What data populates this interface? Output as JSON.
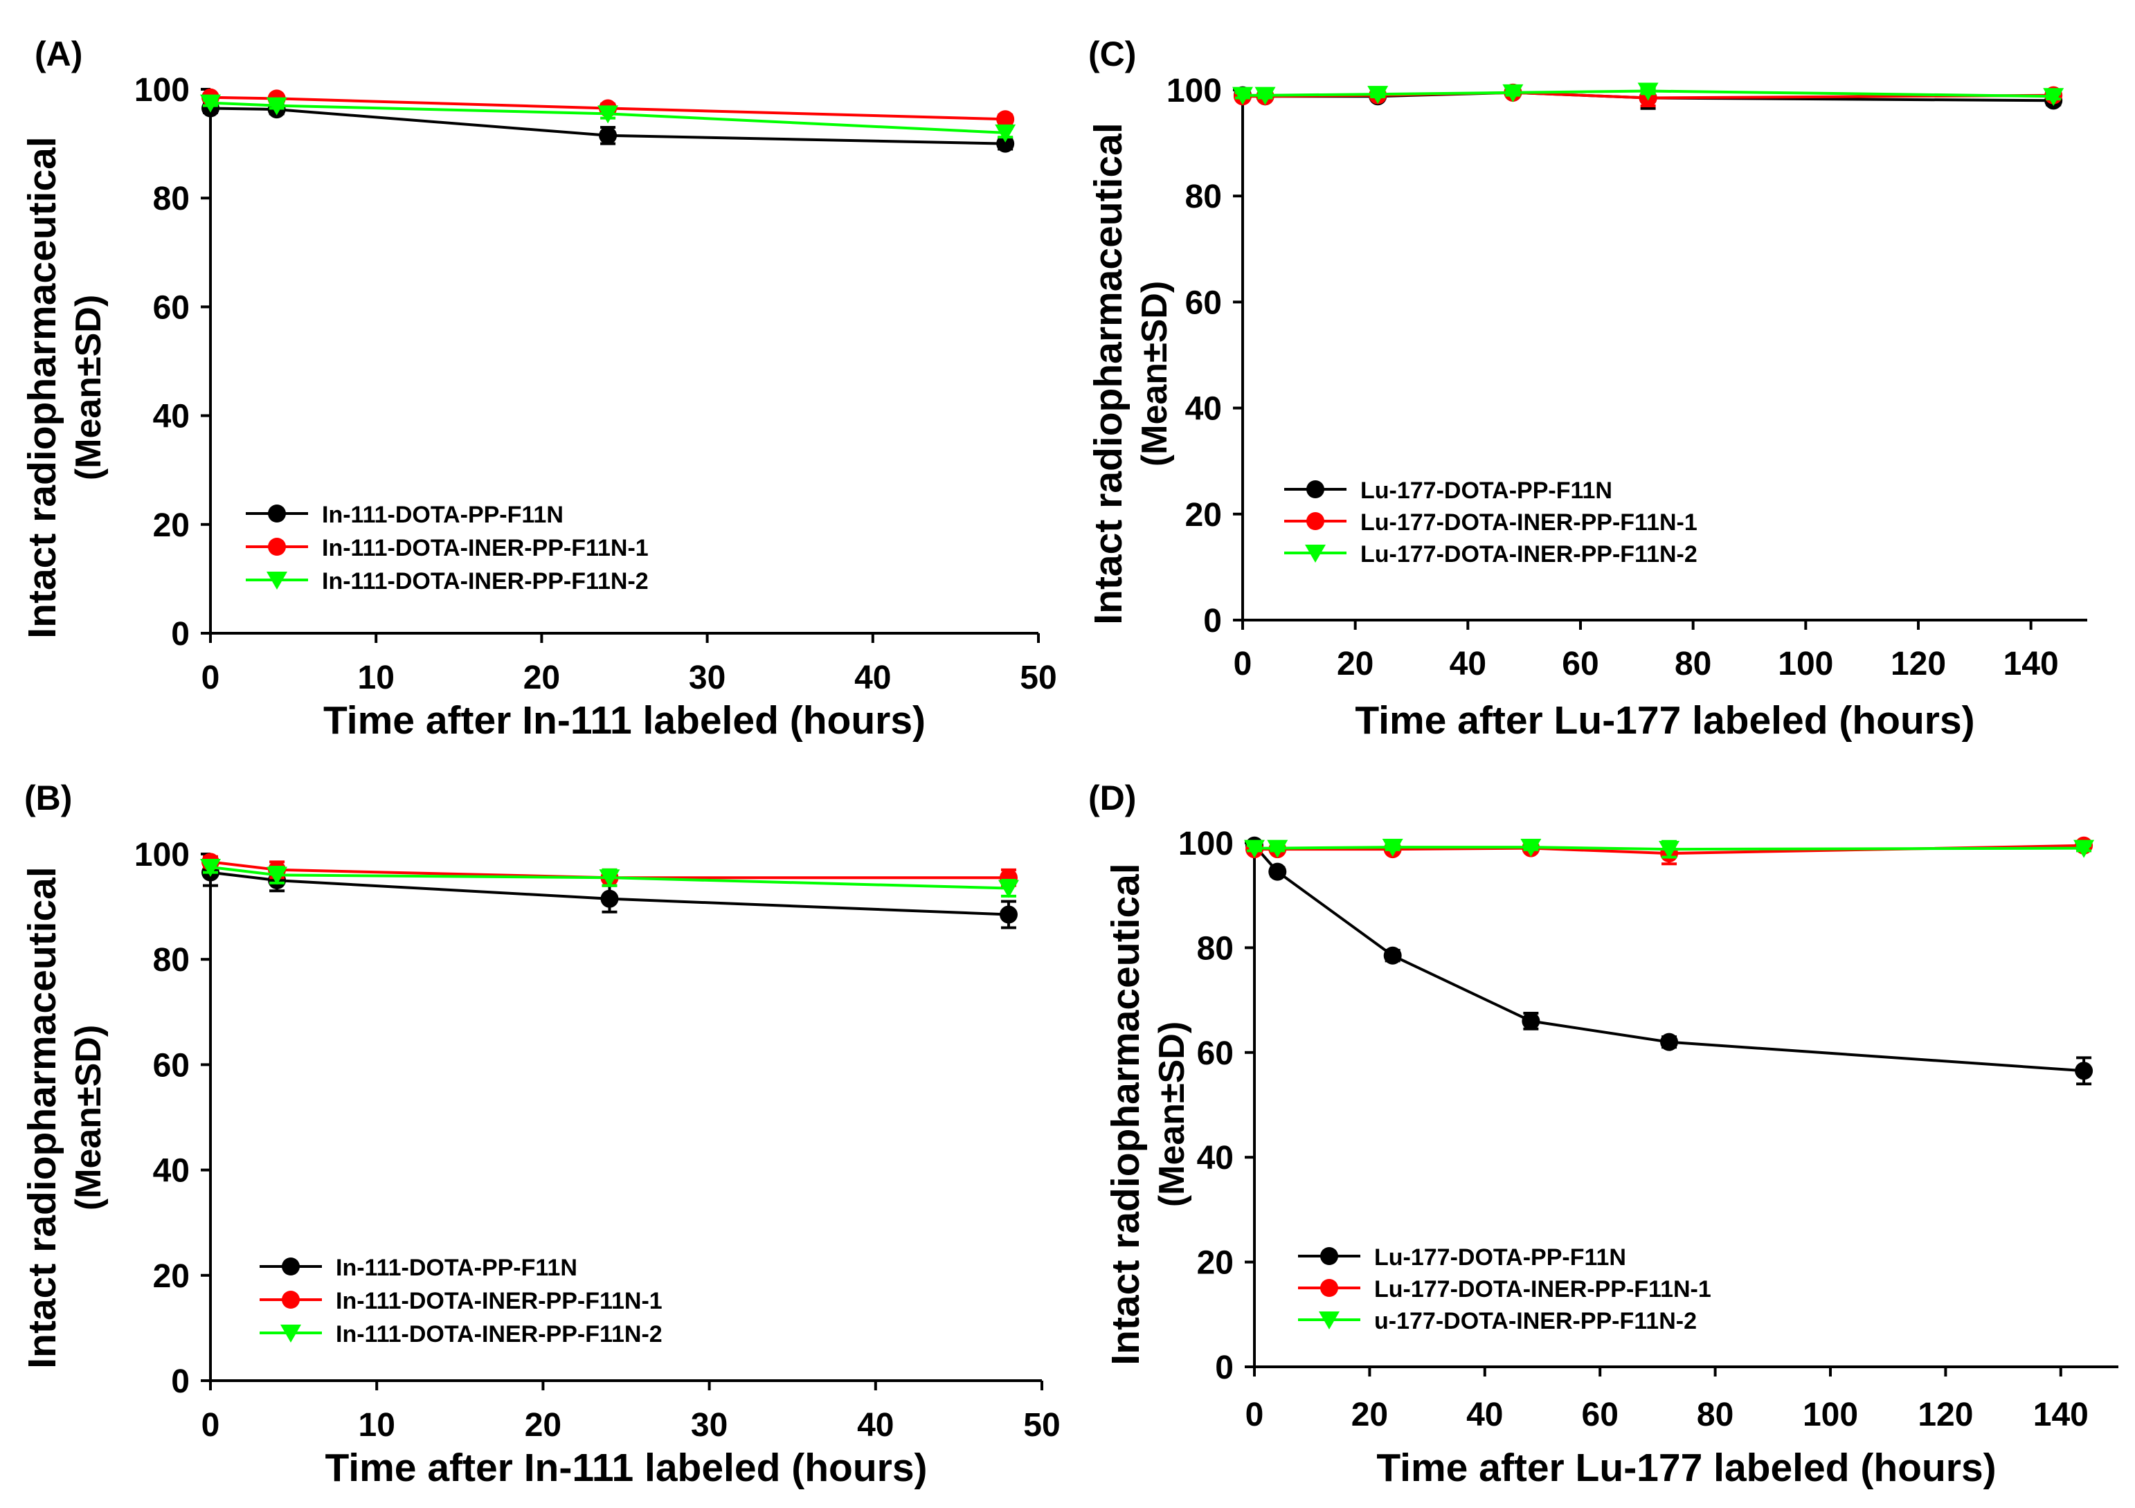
{
  "chart_data": [
    {
      "type": "line",
      "panel_label": "(A)",
      "xlabel": "Time after In-111 labeled (hours)",
      "ylabel": "Intact radiopharmaceutical",
      "ylabel2": "(Mean±SD)",
      "xlim": [
        0,
        50
      ],
      "ylim": [
        0,
        100
      ],
      "xticks": [
        0,
        10,
        20,
        30,
        40,
        50
      ],
      "yticks": [
        0,
        20,
        40,
        60,
        80,
        100
      ],
      "legend_position": "lower-left",
      "series": [
        {
          "name": "In-111-DOTA-PP-F11N",
          "color": "#000000",
          "marker": "circle",
          "x": [
            0,
            4,
            24,
            48
          ],
          "y": [
            96.5,
            96.3,
            91.5,
            90.0
          ],
          "err": [
            0.8,
            0.8,
            1.5,
            1.0
          ]
        },
        {
          "name": "In-111-DOTA-INER-PP-F11N-1",
          "color": "#ff0000",
          "marker": "circle",
          "x": [
            0,
            4,
            24,
            48
          ],
          "y": [
            98.5,
            98.3,
            96.5,
            94.5
          ],
          "err": [
            0.5,
            0.5,
            0.8,
            0.8
          ]
        },
        {
          "name": "In-111-DOTA-INER-PP-F11N-2",
          "color": "#00ff00",
          "marker": "triangle-down",
          "x": [
            0,
            4,
            24,
            48
          ],
          "y": [
            97.5,
            97.0,
            95.5,
            92.0
          ],
          "err": [
            0.5,
            0.5,
            0.8,
            0.8
          ]
        }
      ]
    },
    {
      "type": "line",
      "panel_label": "(B)",
      "xlabel": "Time after In-111 labeled (hours)",
      "ylabel": "Intact radiopharmaceutical",
      "ylabel2": "(Mean±SD)",
      "xlim": [
        0,
        50
      ],
      "ylim": [
        0,
        100
      ],
      "xticks": [
        0,
        10,
        20,
        30,
        40,
        50
      ],
      "yticks": [
        0,
        20,
        40,
        60,
        80,
        100
      ],
      "legend_position": "lower-left",
      "series": [
        {
          "name": "In-111-DOTA-PP-F11N",
          "color": "#000000",
          "marker": "circle",
          "x": [
            0,
            4,
            24,
            48
          ],
          "y": [
            96.5,
            95.0,
            91.5,
            88.5
          ],
          "err": [
            2.5,
            2.0,
            2.5,
            2.5
          ]
        },
        {
          "name": "In-111-DOTA-INER-PP-F11N-1",
          "color": "#ff0000",
          "marker": "circle",
          "x": [
            0,
            4,
            24,
            48
          ],
          "y": [
            98.5,
            97.0,
            95.5,
            95.5
          ],
          "err": [
            1.0,
            1.5,
            1.5,
            1.5
          ]
        },
        {
          "name": "In-111-DOTA-INER-PP-F11N-2",
          "color": "#00ff00",
          "marker": "triangle-down",
          "x": [
            0,
            4,
            24,
            48
          ],
          "y": [
            97.5,
            96.0,
            95.5,
            93.5
          ],
          "err": [
            1.0,
            1.5,
            1.5,
            1.5
          ]
        }
      ]
    },
    {
      "type": "line",
      "panel_label": "(C)",
      "xlabel": "Time after Lu-177 labeled (hours)",
      "ylabel": "Intact radiopharmaceutical",
      "ylabel2": "(Mean±SD)",
      "xlim": [
        0,
        150
      ],
      "ylim": [
        0,
        100
      ],
      "xticks": [
        0,
        20,
        40,
        60,
        80,
        100,
        120,
        140
      ],
      "yticks": [
        0,
        20,
        40,
        60,
        80,
        100
      ],
      "legend_position": "lower-left",
      "series": [
        {
          "name": "Lu-177-DOTA-PP-F11N",
          "color": "#000000",
          "marker": "circle",
          "x": [
            0,
            4,
            24,
            48,
            72,
            144
          ],
          "y": [
            99.0,
            98.8,
            98.8,
            99.5,
            98.5,
            98.0
          ],
          "err": [
            0.5,
            0.5,
            0.5,
            0.5,
            2.0,
            0.8
          ]
        },
        {
          "name": "Lu-177-DOTA-INER-PP-F11N-1",
          "color": "#ff0000",
          "marker": "circle",
          "x": [
            0,
            4,
            24,
            48,
            72,
            144
          ],
          "y": [
            98.8,
            98.8,
            99.0,
            99.5,
            98.5,
            99.0
          ],
          "err": [
            0.5,
            0.5,
            0.5,
            0.5,
            1.5,
            0.5
          ]
        },
        {
          "name": "Lu-177-DOTA-INER-PP-F11N-2",
          "color": "#00ff00",
          "marker": "triangle-down",
          "x": [
            0,
            4,
            24,
            48,
            72,
            144
          ],
          "y": [
            99.0,
            99.0,
            99.2,
            99.5,
            99.8,
            98.8
          ],
          "err": [
            0.5,
            0.5,
            0.5,
            0.5,
            0.5,
            0.5
          ]
        }
      ]
    },
    {
      "type": "line",
      "panel_label": "(D)",
      "xlabel": "Time after Lu-177 labeled (hours)",
      "ylabel": "Intact radiopharmaceutical",
      "ylabel2": "(Mean±SD)",
      "xlim": [
        0,
        150
      ],
      "ylim": [
        0,
        100
      ],
      "xticks": [
        0,
        20,
        40,
        60,
        80,
        100,
        120,
        140
      ],
      "yticks": [
        0,
        20,
        40,
        60,
        80,
        100
      ],
      "legend_position": "lower-left",
      "series": [
        {
          "name": "Lu-177-DOTA-PP-F11N",
          "color": "#000000",
          "marker": "circle",
          "x": [
            0,
            4,
            24,
            48,
            72,
            144
          ],
          "y": [
            99.5,
            94.5,
            78.5,
            66.0,
            62.0,
            56.5
          ],
          "err": [
            0.5,
            0.8,
            1.0,
            1.5,
            1.0,
            2.5
          ]
        },
        {
          "name": "Lu-177-DOTA-INER-PP-F11N-1",
          "color": "#ff0000",
          "marker": "circle",
          "x": [
            0,
            4,
            24,
            48,
            72,
            144
          ],
          "y": [
            98.8,
            98.8,
            98.8,
            99.0,
            98.0,
            99.5
          ],
          "err": [
            0.5,
            0.5,
            0.5,
            0.5,
            2.0,
            0.5
          ]
        },
        {
          "name": "u-177-DOTA-INER-PP-F11N-2",
          "color": "#00ff00",
          "marker": "triangle-down",
          "x": [
            0,
            4,
            24,
            48,
            72,
            144
          ],
          "y": [
            99.0,
            99.0,
            99.2,
            99.2,
            98.8,
            99.0
          ],
          "err": [
            0.5,
            0.5,
            0.5,
            0.5,
            1.5,
            0.5
          ]
        }
      ]
    }
  ]
}
